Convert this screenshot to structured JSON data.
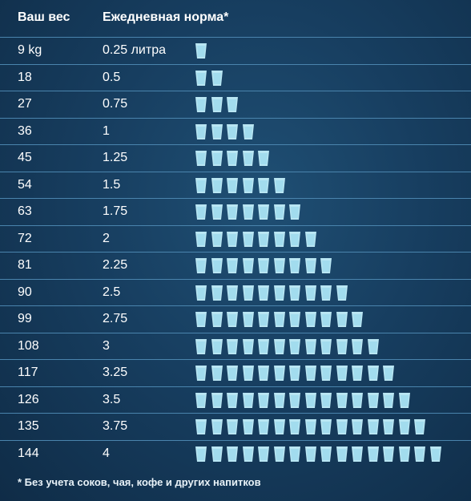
{
  "header": {
    "weight_label": "Ваш вес",
    "norm_label": "Ежедневная норма*"
  },
  "footnote": "* Без учета соков, чая, кофе и других напитков",
  "colors": {
    "cup": "#b9e6f3",
    "cup_shade": "#8fd3ea",
    "divider": "#4a84ad"
  },
  "chart_data": {
    "type": "table",
    "columns": [
      "Ваш вес",
      "Ежедневная норма*"
    ],
    "rows": [
      {
        "weight": "9 kg",
        "norm": "0.25 литра",
        "cups": 1
      },
      {
        "weight": "18",
        "norm": "0.5",
        "cups": 2
      },
      {
        "weight": "27",
        "norm": "0.75",
        "cups": 3
      },
      {
        "weight": "36",
        "norm": "1",
        "cups": 4
      },
      {
        "weight": "45",
        "norm": "1.25",
        "cups": 5
      },
      {
        "weight": "54",
        "norm": "1.5",
        "cups": 6
      },
      {
        "weight": "63",
        "norm": "1.75",
        "cups": 7
      },
      {
        "weight": "72",
        "norm": "2",
        "cups": 8
      },
      {
        "weight": "81",
        "norm": "2.25",
        "cups": 9
      },
      {
        "weight": "90",
        "norm": "2.5",
        "cups": 10
      },
      {
        "weight": "99",
        "norm": "2.75",
        "cups": 11
      },
      {
        "weight": "108",
        "norm": "3",
        "cups": 12
      },
      {
        "weight": "117",
        "norm": "3.25",
        "cups": 13
      },
      {
        "weight": "126",
        "norm": "3.5",
        "cups": 14
      },
      {
        "weight": "135",
        "norm": "3.75",
        "cups": 15
      },
      {
        "weight": "144",
        "norm": "4",
        "cups": 16
      }
    ]
  }
}
